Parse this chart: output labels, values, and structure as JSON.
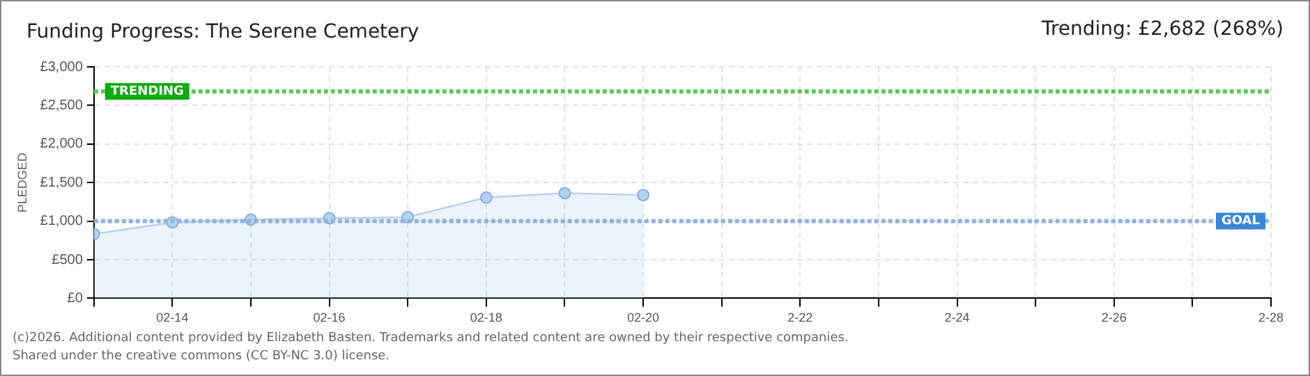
{
  "chart_data": {
    "type": "area",
    "title": "Funding Progress: The Serene Cemetery",
    "subtitle": "Trending:  £2,682 (268%)",
    "ylabel": "PLEDGED",
    "x": [
      "--02-13",
      "--02-14",
      "--02-15",
      "--02-16",
      "--02-17",
      "--02-18",
      "--02-19",
      "--02-20"
    ],
    "series": [
      {
        "color": "#b3d1f2",
        "values": [
          834,
          983,
          1020,
          1039,
          1052,
          1307,
          1363,
          1338
        ]
      }
    ],
    "xlim": [
      "--02-13",
      "--02-28"
    ],
    "xticks": [
      {
        "value": "--02-13",
        "label": null
      },
      {
        "value": "--02-14",
        "label": "02-14"
      },
      {
        "value": "--02-15",
        "label": null
      },
      {
        "value": "--02-16",
        "label": "02-16"
      },
      {
        "value": "--02-17",
        "label": null
      },
      {
        "value": "--02-18",
        "label": "02-18"
      },
      {
        "value": "--02-19",
        "label": null
      },
      {
        "value": "--02-20",
        "label": "02-20"
      },
      {
        "value": "--02-21",
        "label": null
      },
      {
        "value": "--02-22",
        "label": "2-22"
      },
      {
        "value": "--02-23",
        "label": null
      },
      {
        "value": "--02-24",
        "label": "2-24"
      },
      {
        "value": "--02-25",
        "label": null
      },
      {
        "value": "--02-26",
        "label": "2-26"
      },
      {
        "value": "--02-27",
        "label": null
      },
      {
        "value": "--02-28",
        "label": "2-28"
      }
    ],
    "ylim": [
      0,
      3000
    ],
    "yticks": [
      {
        "value": 0,
        "label": "£0"
      },
      {
        "value": 500,
        "label": "£500"
      },
      {
        "value": 1000,
        "label": "£1,000"
      },
      {
        "value": 1500,
        "label": "£1,500"
      },
      {
        "value": 2000,
        "label": "£2,000"
      },
      {
        "value": 2500,
        "label": "£2,500"
      },
      {
        "value": 3000,
        "label": "£3,000"
      }
    ],
    "ref_lines": [
      {
        "axis": "y",
        "value": 2682,
        "label": "TRENDING",
        "color": "#5cc95c",
        "line_style": "dotted"
      },
      {
        "axis": "y",
        "value": 1000,
        "label": "GOAL",
        "color": "#8fb3dd",
        "line_style": "dotted"
      }
    ],
    "grid": true,
    "marker": "circle",
    "legend": false,
    "annotations": [
      "(c)2026. Additional content provided by Elizabeth Basten. Trademarks and related content are owned by their respective companies.",
      "Shared under the creative commons (CC BY-NC 3.0) license."
    ]
  }
}
